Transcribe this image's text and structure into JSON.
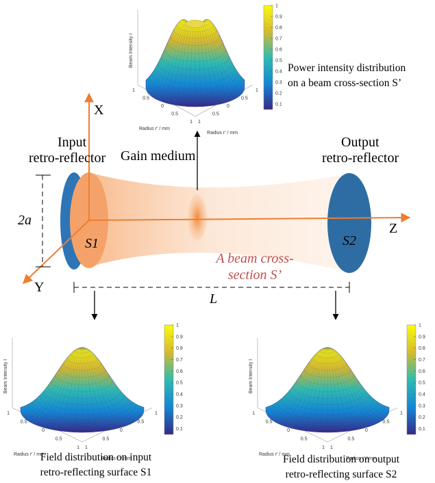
{
  "plots": [
    {
      "caption": [
        "Power intensity distribution",
        "on a beam cross-section S’"
      ],
      "z_label": "Beam Intensity I",
      "x_label": "Radius r' / mm",
      "y_label": "Radius r' / mm",
      "x_ticks": [
        1,
        0.5,
        0,
        0.5,
        1
      ],
      "y_ticks": [
        1,
        0.5,
        0,
        0.5,
        1
      ],
      "colorbar_ticks": [
        0.1,
        0.2,
        0.3,
        0.4,
        0.5,
        0.6,
        0.7,
        0.8,
        0.9,
        1
      ]
    },
    {
      "caption": [
        "Field distribution on input",
        "retro-reflecting surface S1"
      ],
      "z_label": "Beam Intensity I",
      "x_label": "Radius r' / mm",
      "y_label": "Radius r' / mm",
      "x_ticks": [
        1,
        0.5,
        0,
        0.5,
        1
      ],
      "y_ticks": [
        1,
        0.5,
        0,
        0.5,
        1
      ],
      "colorbar_ticks": [
        0.1,
        0.2,
        0.3,
        0.4,
        0.5,
        0.6,
        0.7,
        0.8,
        0.9,
        1
      ]
    },
    {
      "caption": [
        "Field distribution on output",
        "retro-reflecting surface S2"
      ],
      "z_label": "Beam Intensity I",
      "x_label": "Radius r' / mm",
      "y_label": "Radius r' / mm",
      "x_ticks": [
        1,
        0.5,
        0,
        0.5,
        1
      ],
      "y_ticks": [
        1,
        0.5,
        0,
        0.5,
        1
      ],
      "colorbar_ticks": [
        0.1,
        0.2,
        0.3,
        0.4,
        0.5,
        0.6,
        0.7,
        0.8,
        0.9,
        1
      ]
    }
  ],
  "diagram": {
    "axis_x": "X",
    "axis_y": "Y",
    "axis_z": "Z",
    "input_label": [
      "Input",
      "retro-reflector"
    ],
    "gain_medium": "Gain medium",
    "output_label": [
      "Output",
      "retro-reflector"
    ],
    "s1": "S1",
    "s2": "S2",
    "aperture": "2a",
    "length": "L",
    "cross_section": [
      "A beam cross-",
      "section S’"
    ]
  }
}
